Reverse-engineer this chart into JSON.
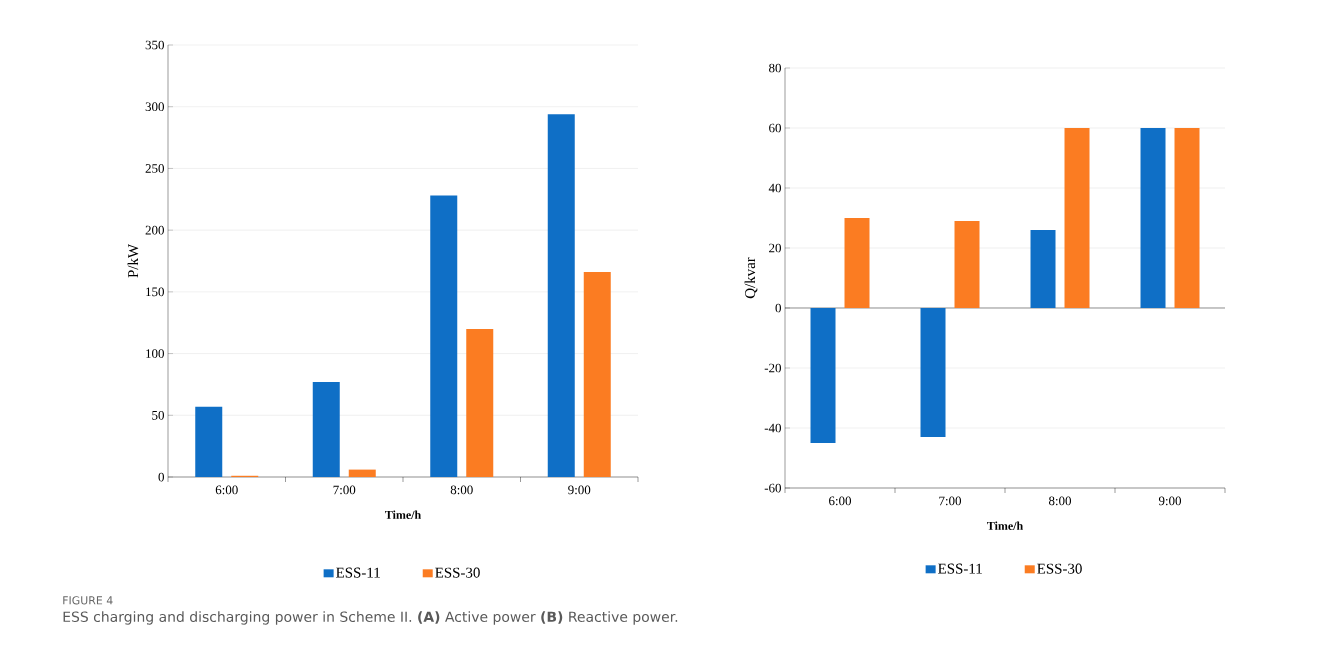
{
  "chart_data": [
    {
      "type": "bar",
      "categories": [
        "6:00",
        "7:00",
        "8:00",
        "9:00"
      ],
      "series": [
        {
          "name": "ESS-11",
          "color": "#0f6fc6",
          "values": [
            57,
            77,
            228,
            294
          ]
        },
        {
          "name": "ESS-30",
          "color": "#fb7c22",
          "values": [
            1,
            6,
            120,
            166
          ]
        }
      ],
      "xlabel": "Time/h",
      "ylabel": "P/kW",
      "ylim": [
        0,
        350
      ],
      "yticks": [
        0,
        50,
        100,
        150,
        200,
        250,
        300,
        350
      ],
      "grid": "y",
      "legend": "bottom",
      "annotations": [
        "FIGURE 4",
        "ESS charging and discharging power in Scheme II. **(A)** Active power **(B)** Reactive power."
      ]
    },
    {
      "type": "bar",
      "categories": [
        "6:00",
        "7:00",
        "8:00",
        "9:00"
      ],
      "series": [
        {
          "name": "ESS-11",
          "color": "#0f6fc6",
          "values": [
            -45,
            -43,
            26,
            60
          ]
        },
        {
          "name": "ESS-30",
          "color": "#fb7c22",
          "values": [
            30,
            29,
            60,
            60
          ]
        }
      ],
      "xlabel": "Time/h",
      "ylabel": "Q/kvar",
      "ylim": [
        -60,
        80
      ],
      "yticks": [
        -60,
        -40,
        -20,
        0,
        20,
        40,
        60,
        80
      ],
      "grid": "y",
      "legend": "bottom"
    }
  ]
}
